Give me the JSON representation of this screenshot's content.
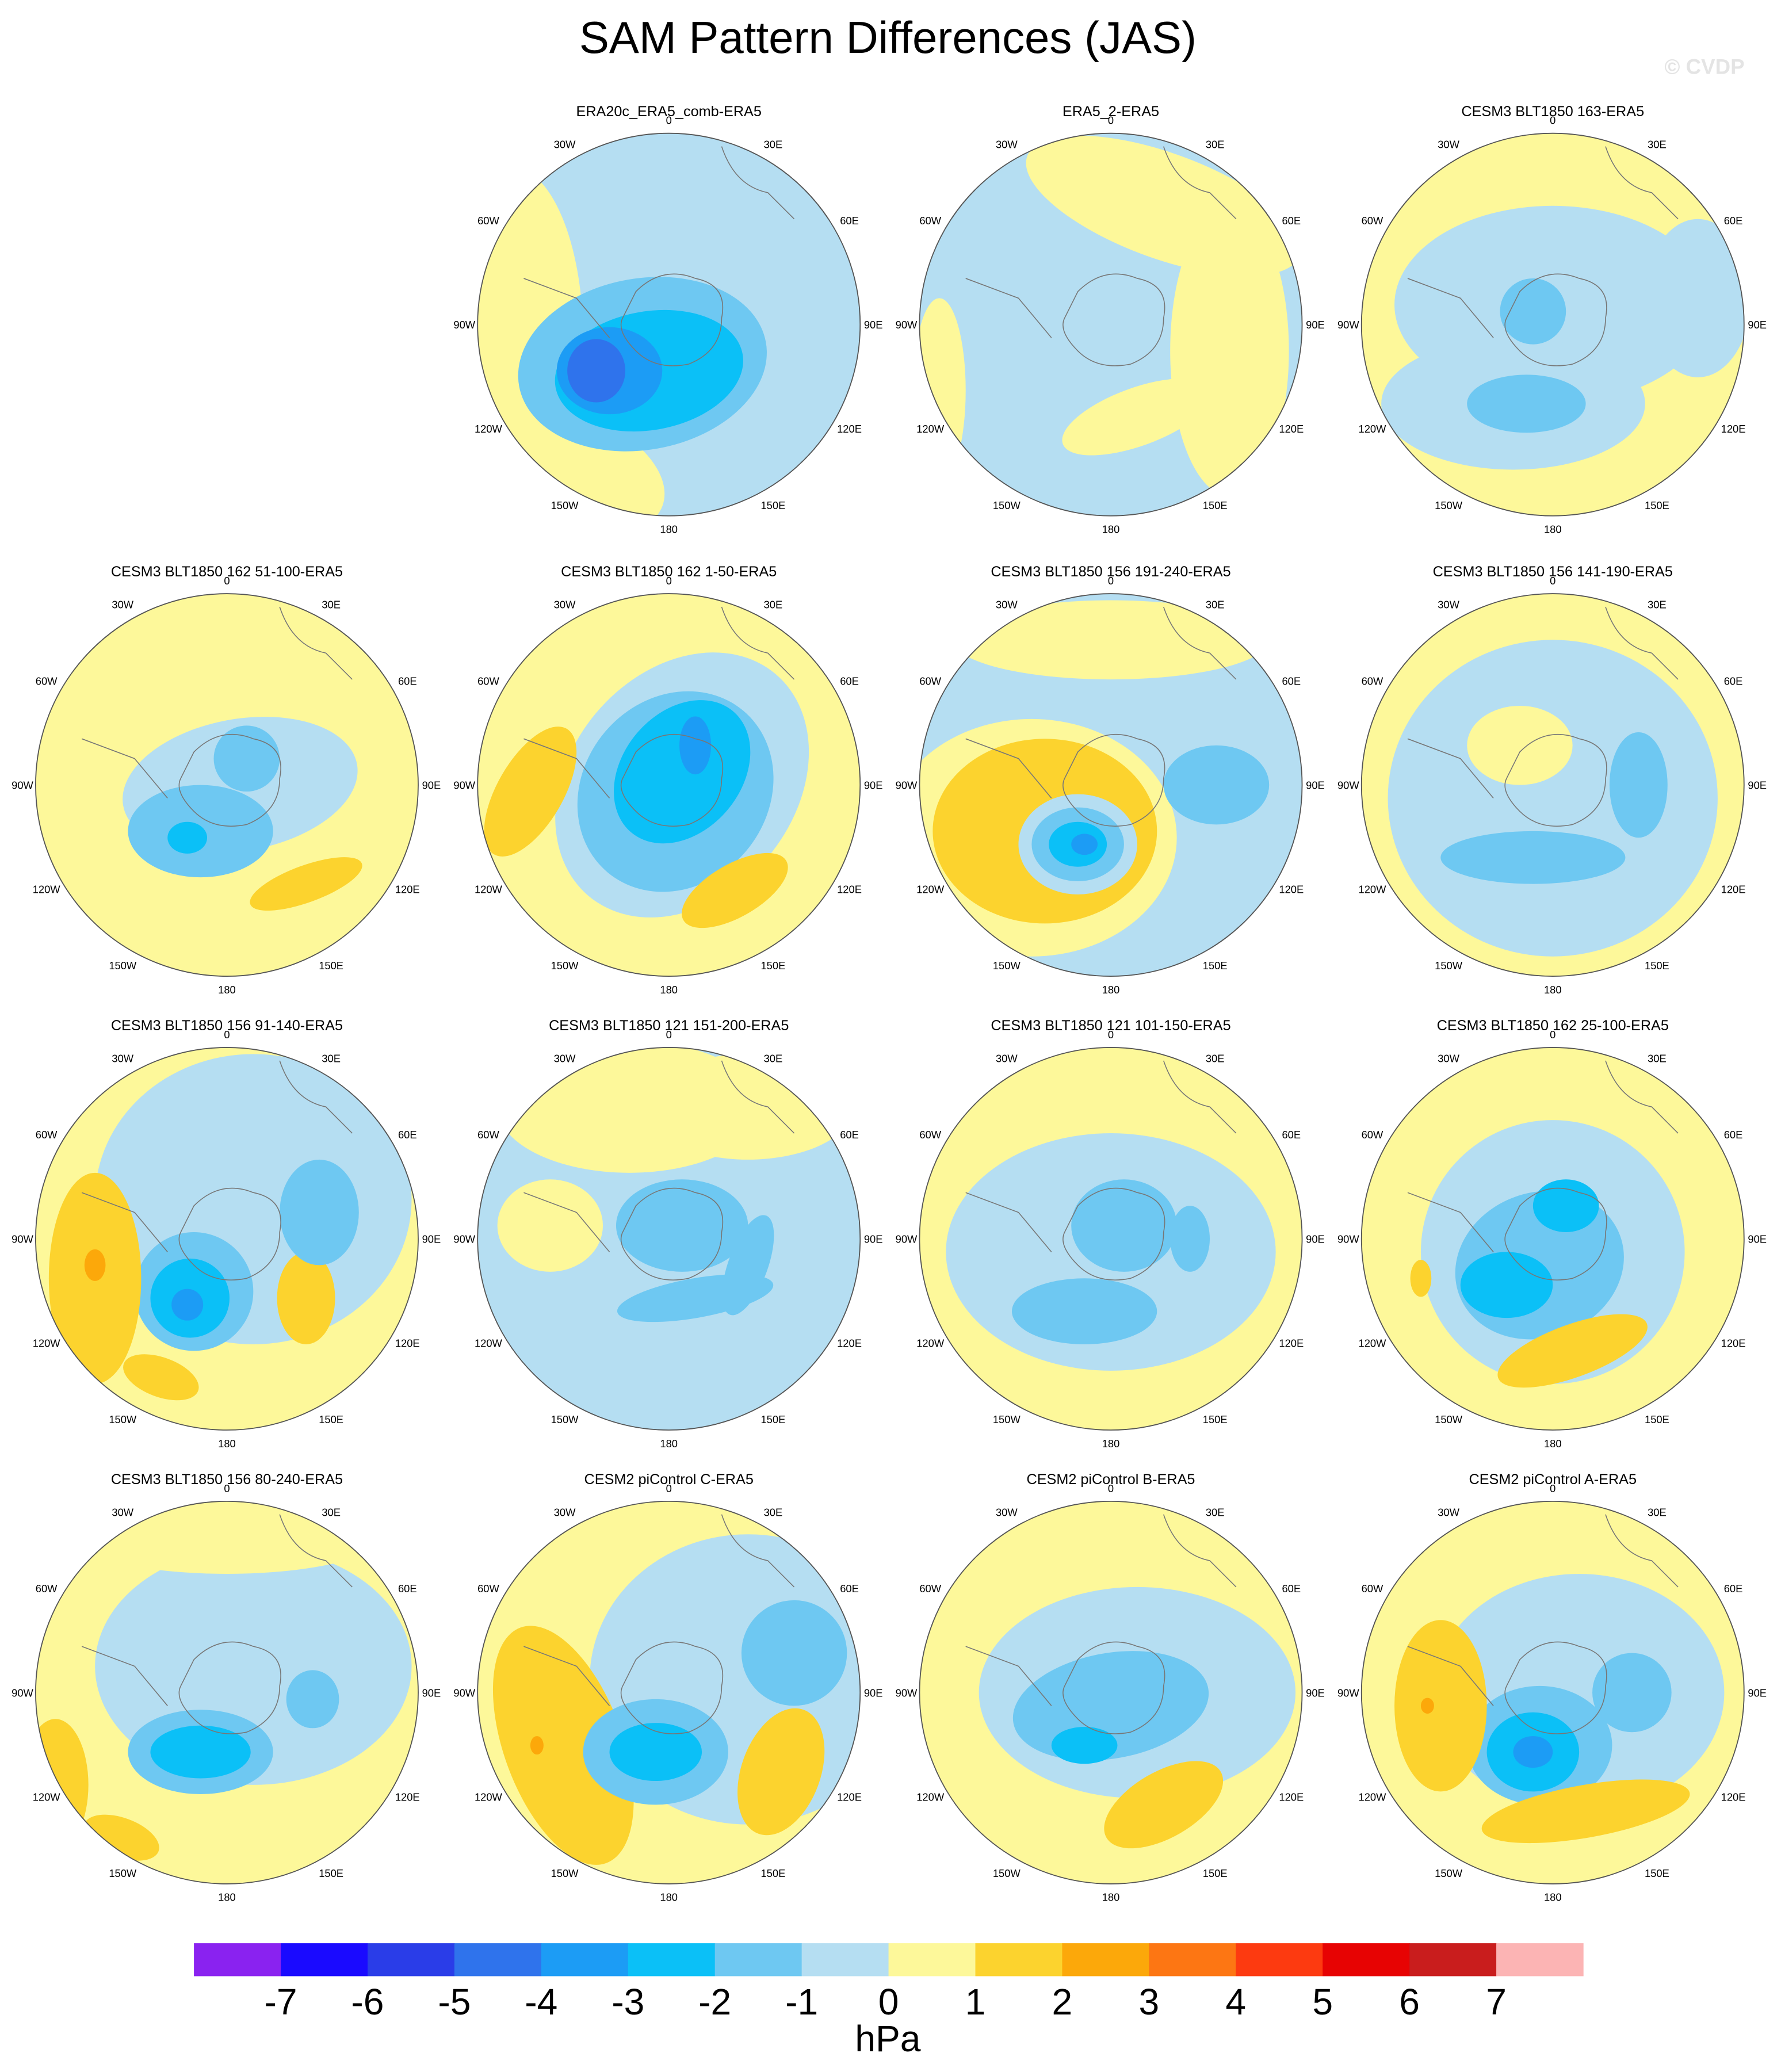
{
  "title": "SAM Pattern Differences (JAS)",
  "watermark": "© CVDP",
  "longitude_labels": [
    "0",
    "30E",
    "60E",
    "90E",
    "120E",
    "150E",
    "180",
    "150W",
    "120W",
    "90W",
    "60W",
    "30W"
  ],
  "panels": [
    {
      "title": "ERA20c_ERA5_comb-ERA5"
    },
    {
      "title": "ERA5_2-ERA5"
    },
    {
      "title": "CESM3 BLT1850 163-ERA5"
    },
    {
      "title": "CESM3 BLT1850 162 51-100-ERA5"
    },
    {
      "title": "CESM3 BLT1850 162 1-50-ERA5"
    },
    {
      "title": "CESM3 BLT1850 156 191-240-ERA5"
    },
    {
      "title": "CESM3 BLT1850 156 141-190-ERA5"
    },
    {
      "title": "CESM3 BLT1850 156 91-140-ERA5"
    },
    {
      "title": "CESM3 BLT1850 121 151-200-ERA5"
    },
    {
      "title": "CESM3 BLT1850 121 101-150-ERA5"
    },
    {
      "title": "CESM3 BLT1850 162 25-100-ERA5"
    },
    {
      "title": "CESM3 BLT1850 156 80-240-ERA5"
    },
    {
      "title": "CESM2 piControl C-ERA5"
    },
    {
      "title": "CESM2 piControl B-ERA5"
    },
    {
      "title": "CESM2 piControl A-ERA5"
    }
  ],
  "colorbar": {
    "colors": [
      "#8a22f0",
      "#1a0aff",
      "#2a3de8",
      "#2f73ec",
      "#1c9cf5",
      "#0bc0f7",
      "#6ec8f2",
      "#b5def2",
      "#fdf89a",
      "#fcd32e",
      "#fca80a",
      "#fd7613",
      "#fd3a10",
      "#e70303",
      "#c91d1d",
      "#fcb4b4"
    ],
    "labels": [
      -7,
      -6,
      -5,
      -4,
      -3,
      -2,
      -1,
      0,
      1,
      2,
      3,
      4,
      5,
      6,
      7
    ],
    "unit": "hPa"
  }
}
